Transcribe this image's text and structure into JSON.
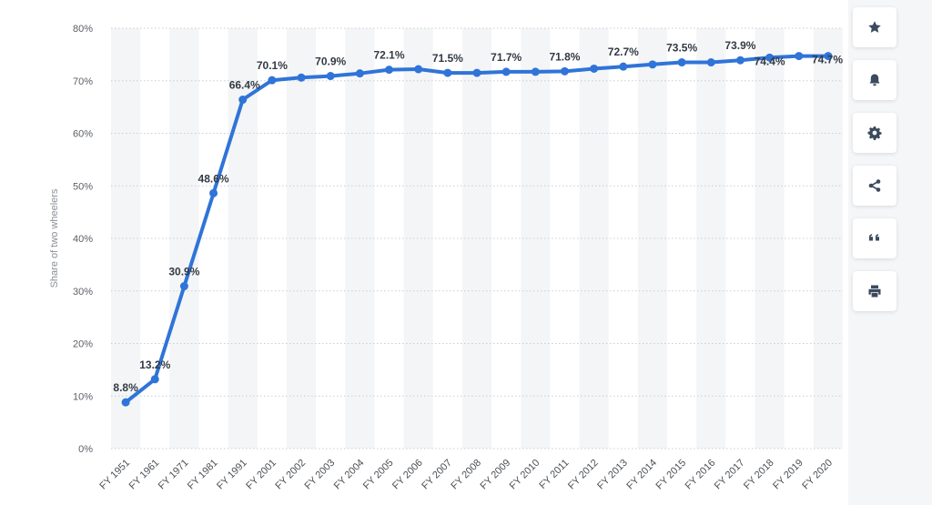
{
  "chart_data": {
    "type": "line",
    "title": "",
    "xlabel": "",
    "ylabel": "Share of two wheelers",
    "ylim": [
      0,
      80
    ],
    "yticks": [
      0,
      10,
      20,
      30,
      40,
      50,
      60,
      70,
      80
    ],
    "ytick_labels": [
      "0%",
      "10%",
      "20%",
      "30%",
      "40%",
      "50%",
      "60%",
      "70%",
      "80%"
    ],
    "grid": true,
    "legend": "none",
    "categories": [
      "FY 1951",
      "FY 1961",
      "FY 1971",
      "FY 1981",
      "FY 1991",
      "FY 2001",
      "FY 2002",
      "FY 2003",
      "FY 2004",
      "FY 2005",
      "FY 2006",
      "FY 2007",
      "FY 2008",
      "FY 2009",
      "FY 2010",
      "FY 2011",
      "FY 2012",
      "FY 2013",
      "FY 2014",
      "FY 2015",
      "FY 2016",
      "FY 2017",
      "FY 2018",
      "FY 2019",
      "FY 2020"
    ],
    "series": [
      {
        "color": "#2f74d8",
        "values": [
          8.8,
          13.2,
          30.9,
          48.6,
          66.4,
          70.1,
          70.6,
          70.9,
          71.4,
          72.1,
          72.2,
          71.5,
          71.5,
          71.7,
          71.7,
          71.8,
          72.3,
          72.7,
          73.1,
          73.5,
          73.5,
          73.9,
          74.4,
          74.7,
          74.7
        ]
      }
    ],
    "data_labels": [
      {
        "index": 0,
        "text": "8.8%"
      },
      {
        "index": 1,
        "text": "13.2%"
      },
      {
        "index": 2,
        "text": "30.9%"
      },
      {
        "index": 3,
        "text": "48.6%"
      },
      {
        "index": 4,
        "text": "66.4%"
      },
      {
        "index": 5,
        "text": "70.1%"
      },
      {
        "index": 7,
        "text": "70.9%"
      },
      {
        "index": 9,
        "text": "72.1%"
      },
      {
        "index": 11,
        "text": "71.5%"
      },
      {
        "index": 13,
        "text": "71.7%"
      },
      {
        "index": 15,
        "text": "71.8%"
      },
      {
        "index": 17,
        "text": "72.7%"
      },
      {
        "index": 19,
        "text": "73.5%"
      },
      {
        "index": 21,
        "text": "73.9%"
      },
      {
        "index": 22,
        "text": "74.4%"
      },
      {
        "index": 24,
        "text": "74.7%"
      }
    ]
  },
  "toolbar": {
    "buttons": [
      {
        "name": "favorite",
        "icon": "star-icon"
      },
      {
        "name": "notification",
        "icon": "bell-icon"
      },
      {
        "name": "settings",
        "icon": "gear-icon"
      },
      {
        "name": "share",
        "icon": "share-icon"
      },
      {
        "name": "cite",
        "icon": "quote-icon"
      },
      {
        "name": "print",
        "icon": "print-icon"
      }
    ]
  }
}
